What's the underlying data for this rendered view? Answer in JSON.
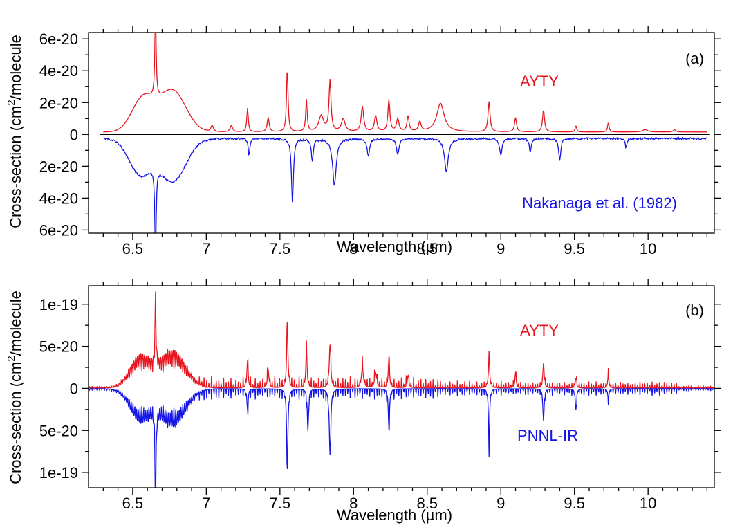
{
  "chart_data": [
    {
      "id": "a",
      "type": "line",
      "panel_label": "(a)",
      "xlabel": "Wavelength (µm)",
      "ylabel_parts": [
        "Cross-section (cm",
        "2",
        "/molecule"
      ],
      "xlim": [
        6.2,
        10.45
      ],
      "ylim": [
        -6.2e-20,
        6.4e-20
      ],
      "x_ticks": [
        6.5,
        7,
        7.5,
        8,
        8.5,
        9,
        9.5,
        10
      ],
      "x_tick_labels": [
        "6.5",
        "7",
        "7.5",
        "8",
        "8.5",
        "9",
        "9.5",
        "10"
      ],
      "y_ticks": [
        -6e-20,
        -4e-20,
        -2e-20,
        0,
        2e-20,
        4e-20,
        6e-20
      ],
      "y_tick_labels": [
        "6e-20",
        "4e-20",
        "2e-20",
        "0",
        "2e-20",
        "4e-20",
        "6e-20"
      ],
      "zero_line": true,
      "series": [
        {
          "name": "AYTY",
          "color": "#e8141e",
          "sign": 1,
          "x_range": [
            6.3,
            10.4
          ],
          "step": 0.004,
          "baseline": 1.5e-21,
          "envelopes": [
            {
              "center": 6.57,
              "amp": 2.1e-20,
              "width": 0.075
            },
            {
              "center": 6.77,
              "amp": 2.6e-20,
              "width": 0.09
            }
          ],
          "peaks": [
            [
              6.655,
              5.6e-20,
              0.005
            ],
            [
              7.04,
              4e-21,
              0.01
            ],
            [
              7.17,
              4e-21,
              0.01
            ],
            [
              7.28,
              1.5e-20,
              0.006
            ],
            [
              7.42,
              9e-21,
              0.008
            ],
            [
              7.55,
              4.1e-20,
              0.006
            ],
            [
              7.68,
              2e-20,
              0.006
            ],
            [
              7.78,
              1e-20,
              0.02
            ],
            [
              7.84,
              3.2e-20,
              0.008
            ],
            [
              7.93,
              8e-21,
              0.015
            ],
            [
              8.06,
              1.6e-20,
              0.01
            ],
            [
              8.15,
              1e-20,
              0.01
            ],
            [
              8.24,
              2e-20,
              0.008
            ],
            [
              8.3,
              8e-21,
              0.01
            ],
            [
              8.37,
              1e-20,
              0.008
            ],
            [
              8.45,
              6e-21,
              0.01
            ],
            [
              8.59,
              1.8e-20,
              0.03
            ],
            [
              8.92,
              1.9e-20,
              0.008
            ],
            [
              9.1,
              9e-21,
              0.008
            ],
            [
              9.29,
              1.4e-20,
              0.008
            ],
            [
              9.51,
              4e-21,
              0.006
            ],
            [
              9.73,
              6e-21,
              0.006
            ],
            [
              9.98,
              1.5e-21,
              0.02
            ],
            [
              10.18,
              1.5e-21,
              0.01
            ]
          ],
          "series_label": "AYTY"
        },
        {
          "name": "Nakanaga et al. (1982)",
          "color": "#1414e6",
          "sign": -1,
          "x_range": [
            6.3,
            10.4
          ],
          "step": 0.004,
          "baseline": 2e-21,
          "noise": 1.2e-21,
          "envelopes": [
            {
              "center": 6.55,
              "amp": 2.2e-20,
              "width": 0.075
            },
            {
              "center": 6.77,
              "amp": 2.7e-20,
              "width": 0.09
            }
          ],
          "peaks": [
            [
              6.655,
              5.6e-20,
              0.005
            ],
            [
              7.29,
              1.1e-20,
              0.006
            ],
            [
              7.585,
              4e-20,
              0.008
            ],
            [
              7.72,
              1.4e-20,
              0.008
            ],
            [
              7.87,
              2.9e-20,
              0.015
            ],
            [
              8.1,
              1.1e-20,
              0.01
            ],
            [
              8.3,
              1e-20,
              0.01
            ],
            [
              8.63,
              2.1e-20,
              0.015
            ],
            [
              9.0,
              1e-20,
              0.01
            ],
            [
              9.2,
              8e-21,
              0.008
            ],
            [
              9.4,
              1.4e-20,
              0.008
            ],
            [
              9.85,
              6e-21,
              0.006
            ]
          ],
          "series_label": "Nakanaga et al. (1982)"
        }
      ]
    },
    {
      "id": "b",
      "type": "line",
      "panel_label": "(b)",
      "xlabel": "Wavelength (µm)",
      "ylabel_parts": [
        "Cross-section (cm",
        "2",
        "/molecule"
      ],
      "xlim": [
        6.2,
        10.45
      ],
      "ylim": [
        -1.18e-19,
        1.22e-19
      ],
      "x_ticks": [
        6.5,
        7,
        7.5,
        8,
        8.5,
        9,
        9.5,
        10
      ],
      "x_tick_labels": [
        "6.5",
        "7",
        "7.5",
        "8",
        "8.5",
        "9",
        "9.5",
        "10"
      ],
      "y_ticks": [
        -1e-19,
        -5e-20,
        0,
        5e-20,
        1e-19
      ],
      "y_tick_labels": [
        "1e-19",
        "5e-20",
        "0",
        "5e-20",
        "1e-19"
      ],
      "zero_line": false,
      "series": [
        {
          "name": "AYTY",
          "color": "#e8141e",
          "sign": 1,
          "x_range": [
            6.2,
            10.45
          ],
          "step": 0.0025,
          "baseline": 5e-22,
          "rotational": 1,
          "envelopes": [
            {
              "center": 6.55,
              "amp": 3.8e-20,
              "width": 0.07
            },
            {
              "center": 6.77,
              "amp": 4.5e-20,
              "width": 0.09
            }
          ],
          "peaks": [
            [
              6.655,
              8.2e-20,
              0.004
            ],
            [
              7.28,
              3.3e-20,
              0.005
            ],
            [
              7.42,
              2.2e-20,
              0.006
            ],
            [
              7.55,
              7.8e-20,
              0.005
            ],
            [
              7.68,
              4.5e-20,
              0.005
            ],
            [
              7.84,
              5.2e-20,
              0.006
            ],
            [
              8.06,
              2.4e-20,
              0.008
            ],
            [
              8.15,
              1.8e-20,
              0.008
            ],
            [
              8.24,
              3.6e-20,
              0.005
            ],
            [
              8.37,
              1.5e-20,
              0.006
            ],
            [
              8.92,
              3.8e-20,
              0.005
            ],
            [
              9.1,
              1.8e-20,
              0.005
            ],
            [
              9.29,
              3e-20,
              0.005
            ],
            [
              9.51,
              1.2e-20,
              0.005
            ],
            [
              9.73,
              1.5e-20,
              0.005
            ]
          ],
          "series_label": "AYTY"
        },
        {
          "name": "PNNL-IR",
          "color": "#1414e6",
          "sign": -1,
          "x_range": [
            6.2,
            10.45
          ],
          "step": 0.0025,
          "baseline": 4e-22,
          "rotational": 1,
          "envelopes": [
            {
              "center": 6.55,
              "amp": 3.8e-20,
              "width": 0.07
            },
            {
              "center": 6.77,
              "amp": 4.5e-20,
              "width": 0.09
            }
          ],
          "peaks": [
            [
              6.655,
              1.18e-19,
              0.004
            ],
            [
              7.28,
              2.5e-20,
              0.005
            ],
            [
              7.55,
              9.5e-20,
              0.005
            ],
            [
              7.69,
              5e-20,
              0.005
            ],
            [
              7.84,
              7.8e-20,
              0.006
            ],
            [
              8.24,
              4.8e-20,
              0.005
            ],
            [
              8.92,
              7.5e-20,
              0.004
            ],
            [
              9.29,
              3.8e-20,
              0.005
            ],
            [
              9.51,
              2.5e-20,
              0.005
            ],
            [
              9.73,
              1.2e-20,
              0.005
            ]
          ],
          "series_label": "PNNL-IR"
        }
      ]
    }
  ]
}
